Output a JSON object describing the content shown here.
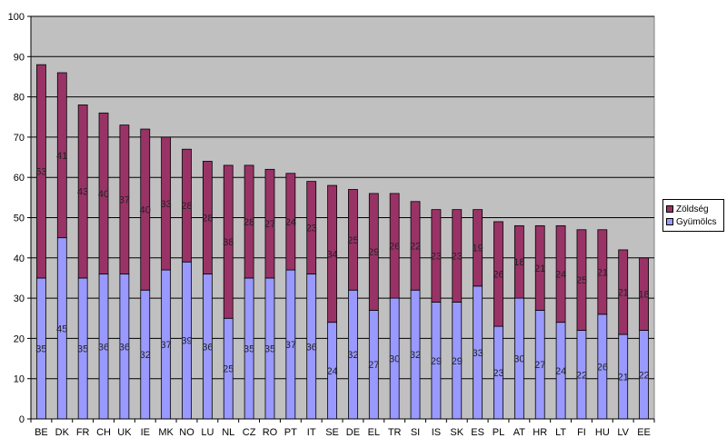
{
  "chart_data": {
    "type": "bar",
    "stacked": true,
    "categories": [
      "BE",
      "DK",
      "FR",
      "CH",
      "UK",
      "IE",
      "MK",
      "NO",
      "LU",
      "NL",
      "CZ",
      "RO",
      "PT",
      "IT",
      "SE",
      "DE",
      "EL",
      "TR",
      "SI",
      "IS",
      "SK",
      "ES",
      "PL",
      "AT",
      "HR",
      "LT",
      "FI",
      "HU",
      "LV",
      "EE"
    ],
    "series": [
      {
        "name": "Gyümölcs",
        "values": [
          35,
          45,
          35,
          36,
          36,
          32,
          37,
          39,
          36,
          25,
          35,
          35,
          37,
          36,
          24,
          32,
          27,
          30,
          32,
          29,
          29,
          33,
          23,
          30,
          27,
          24,
          22,
          26,
          21,
          22
        ]
      },
      {
        "name": "Zöldség",
        "values": [
          53,
          41,
          43,
          40,
          37,
          40,
          33,
          28,
          28,
          38,
          28,
          27,
          24,
          23,
          34,
          25,
          29,
          26,
          22,
          23,
          23,
          19,
          26,
          18,
          21,
          24,
          25,
          21,
          21,
          18
        ]
      }
    ],
    "title": "",
    "xlabel": "",
    "ylabel": "",
    "ylim": [
      0,
      100
    ],
    "yticks": [
      0,
      10,
      20,
      30,
      40,
      50,
      60,
      70,
      80,
      90,
      100
    ],
    "grid": true,
    "plot_background": "#C0C0C0",
    "colors": {
      "Gyümölcs": "#9999FF",
      "Zöldség": "#993366"
    },
    "legend": {
      "placement": "right",
      "entries": [
        "Zöldség",
        "Gyümölcs"
      ]
    }
  }
}
